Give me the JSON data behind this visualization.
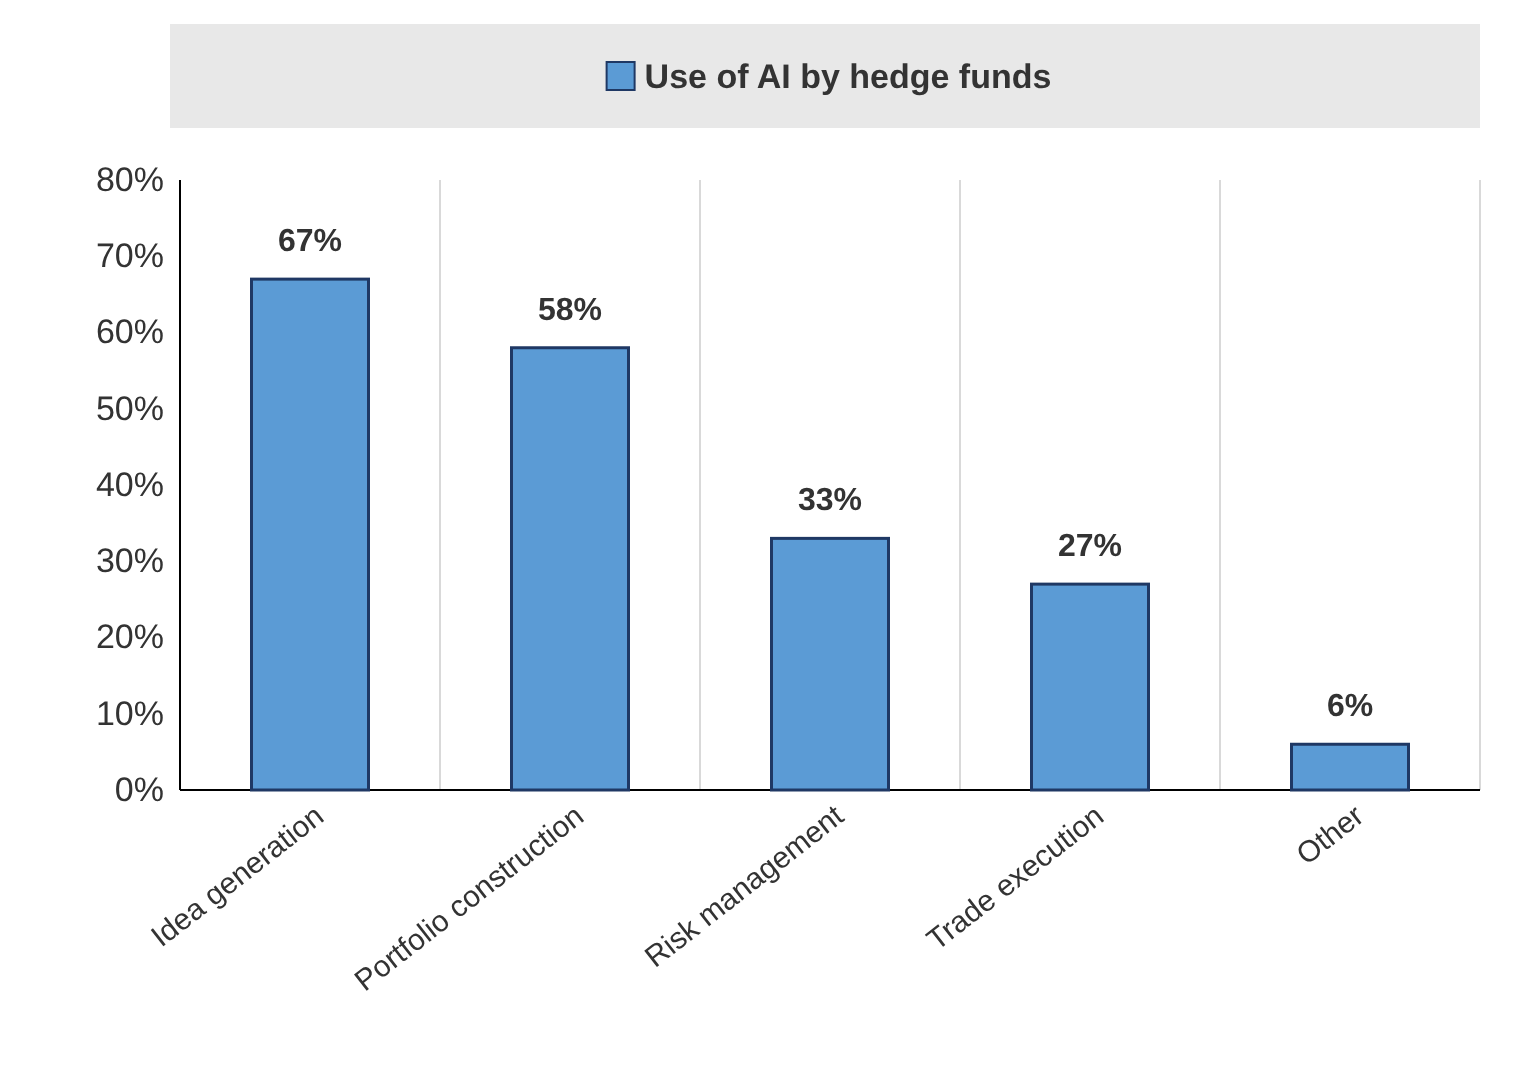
{
  "chart_data": {
    "type": "bar",
    "categories": [
      "Idea generation",
      "Portfolio construction",
      "Risk management",
      "Trade execution",
      "Other"
    ],
    "series": [
      {
        "name": "Use of AI by hedge funds",
        "color": "#5b9bd5",
        "values": [
          67,
          58,
          33,
          27,
          6
        ]
      }
    ],
    "ylim": [
      0,
      80
    ],
    "yticks": [
      {
        "value": 0,
        "label": "0%"
      },
      {
        "value": 10,
        "label": "10%"
      },
      {
        "value": 20,
        "label": "20%"
      },
      {
        "value": 30,
        "label": "30%"
      },
      {
        "value": 40,
        "label": "40%"
      },
      {
        "value": 50,
        "label": "50%"
      },
      {
        "value": 60,
        "label": "60%"
      },
      {
        "value": 70,
        "label": "70%"
      },
      {
        "value": 80,
        "label": "80%"
      }
    ],
    "value_labels": [
      "67%",
      "58%",
      "33%",
      "27%",
      "6%"
    ],
    "grid": "x",
    "legend": "top"
  }
}
